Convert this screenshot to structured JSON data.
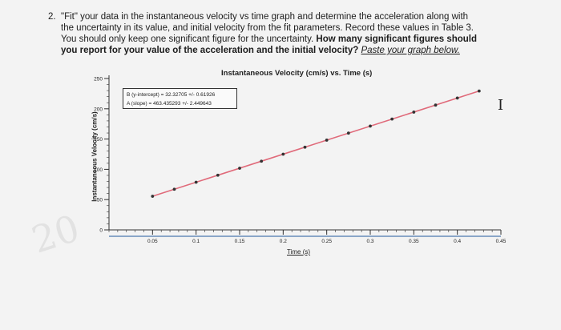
{
  "question": {
    "number": "2.",
    "line1": "\"Fit\" your data in the instantaneous velocity vs time graph and determine the acceleration along with",
    "line2": "the uncertainty in its value, and initial velocity from the fit parameters. Record these values in Table 3.",
    "line3_plain": "You should only keep one significant figure for the uncertainty.",
    "line3_bold": "How many significant figures should",
    "line4_bold": "you report for your value of the acceleration and the initial velocity?",
    "line4_link": "Paste your graph below."
  },
  "watermark": "20",
  "cursor_glyph": "I",
  "colors": {
    "series": "#e06a7a",
    "points": "#333333",
    "axis": "#333333"
  },
  "chart_data": {
    "type": "scatter",
    "title": "Instantaneous Velocity (cm/s) vs. Time (s)",
    "xlabel": "Time (s)",
    "ylabel": "Instantaneous Velocity (cm/s)",
    "xlim": [
      0,
      0.45
    ],
    "ylim": [
      0,
      250
    ],
    "x_ticks": [
      "0.05",
      "0.1",
      "0.15",
      "0.2",
      "0.25",
      "0.3",
      "0.35",
      "0.4",
      "0.45"
    ],
    "y_ticks": [
      "0",
      "50",
      "100",
      "150",
      "200",
      "250"
    ],
    "fit_text": {
      "intercept": "B (y-intercept) = 32.32705 +/- 0.61926",
      "slope": "A (slope) = 463.435293 +/- 2.449643"
    },
    "fit": {
      "intercept": 32.32705,
      "slope": 463.435293
    },
    "x": [
      0.05,
      0.075,
      0.1,
      0.125,
      0.15,
      0.175,
      0.2,
      0.225,
      0.25,
      0.275,
      0.3,
      0.325,
      0.35,
      0.375,
      0.4,
      0.425
    ],
    "y": [
      55.5,
      67.1,
      78.7,
      90.3,
      101.8,
      113.4,
      125.0,
      136.6,
      148.2,
      159.8,
      171.4,
      183.0,
      194.5,
      206.1,
      217.7,
      229.3
    ]
  }
}
